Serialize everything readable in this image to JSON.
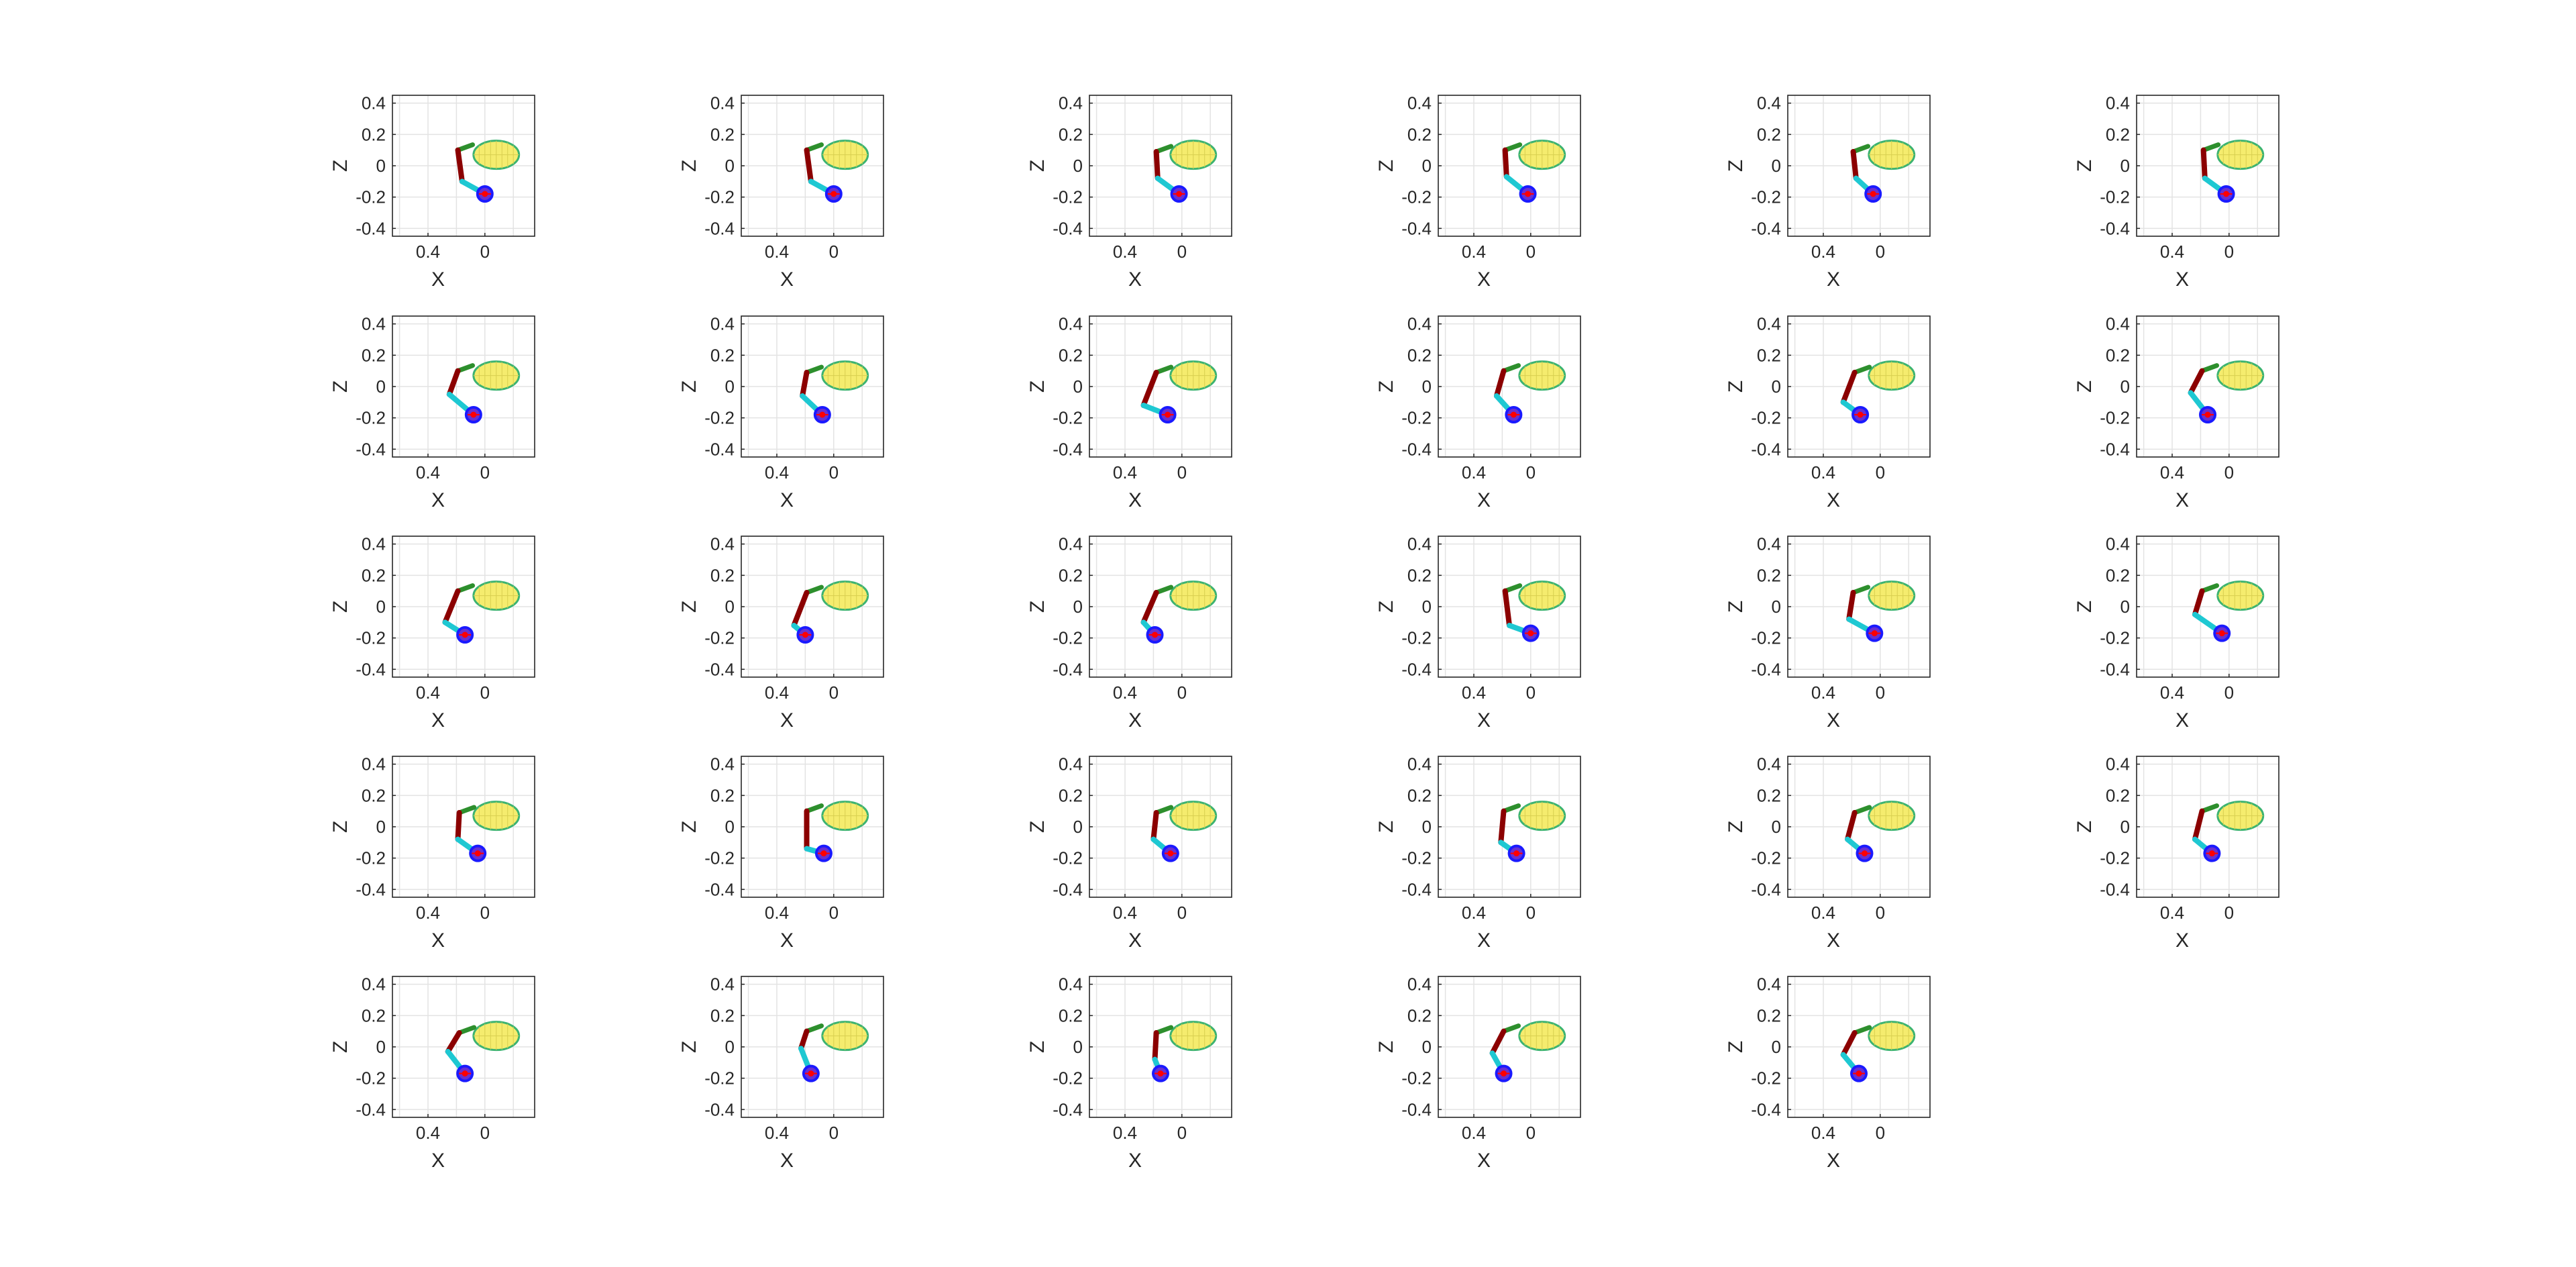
{
  "chart_data": {
    "type": "small-multiples",
    "plot_kind": "arm-pose-snapshot",
    "panel_count": 29,
    "grid": {
      "rows": 5,
      "cols": 6
    },
    "xlabel": "X",
    "ylabel": "Z",
    "xlim": [
      0.65,
      -0.35
    ],
    "ylim": [
      -0.45,
      0.45
    ],
    "x_reversed": true,
    "x_ticks": [
      0.4,
      0
    ],
    "x_tick_labels": [
      "0.4",
      "0"
    ],
    "y_ticks": [
      0.4,
      0.2,
      0,
      -0.2,
      -0.4
    ],
    "y_tick_labels": [
      "0.4",
      "0.2",
      "0",
      "-0.2",
      "-0.4"
    ],
    "grid_lines": true,
    "colors": {
      "upper_link": "#8b0000",
      "lower_link": "#1ec8d2",
      "base_link": "#2d8f2d",
      "ellipsoid_fill": "#f5ec6e",
      "ellipsoid_edge": "#3cb371",
      "target_ring": "#1a1aff",
      "target_center": "#ff0000",
      "axes_box": "#262626",
      "grid": "#e3e3e3"
    },
    "ellipsoid": {
      "center": [
        -0.08,
        0.07
      ],
      "radii": [
        0.16,
        0.09
      ]
    },
    "panels": [
      {
        "index": 1,
        "base": [
          0.19,
          0.1
        ],
        "shoulder": [
          0.16,
          -0.1
        ],
        "target": [
          0.0,
          -0.18
        ]
      },
      {
        "index": 2,
        "base": [
          0.19,
          0.1
        ],
        "shoulder": [
          0.16,
          -0.1
        ],
        "target": [
          0.0,
          -0.18
        ]
      },
      {
        "index": 3,
        "base": [
          0.18,
          0.09
        ],
        "shoulder": [
          0.17,
          -0.08
        ],
        "target": [
          0.02,
          -0.18
        ]
      },
      {
        "index": 4,
        "base": [
          0.18,
          0.1
        ],
        "shoulder": [
          0.17,
          -0.07
        ],
        "target": [
          0.02,
          -0.18
        ]
      },
      {
        "index": 5,
        "base": [
          0.19,
          0.09
        ],
        "shoulder": [
          0.17,
          -0.08
        ],
        "target": [
          0.05,
          -0.18
        ]
      },
      {
        "index": 6,
        "base": [
          0.18,
          0.1
        ],
        "shoulder": [
          0.17,
          -0.08
        ],
        "target": [
          0.02,
          -0.18
        ]
      },
      {
        "index": 7,
        "base": [
          0.19,
          0.1
        ],
        "shoulder": [
          0.25,
          -0.05
        ],
        "target": [
          0.08,
          -0.18
        ]
      },
      {
        "index": 8,
        "base": [
          0.19,
          0.09
        ],
        "shoulder": [
          0.22,
          -0.06
        ],
        "target": [
          0.08,
          -0.18
        ]
      },
      {
        "index": 9,
        "base": [
          0.18,
          0.09
        ],
        "shoulder": [
          0.27,
          -0.12
        ],
        "target": [
          0.1,
          -0.18
        ]
      },
      {
        "index": 10,
        "base": [
          0.19,
          0.1
        ],
        "shoulder": [
          0.24,
          -0.06
        ],
        "target": [
          0.12,
          -0.18
        ]
      },
      {
        "index": 11,
        "base": [
          0.18,
          0.09
        ],
        "shoulder": [
          0.26,
          -0.1
        ],
        "target": [
          0.14,
          -0.18
        ]
      },
      {
        "index": 12,
        "base": [
          0.19,
          0.1
        ],
        "shoulder": [
          0.27,
          -0.04
        ],
        "target": [
          0.15,
          -0.18
        ]
      },
      {
        "index": 13,
        "base": [
          0.19,
          0.1
        ],
        "shoulder": [
          0.28,
          -0.1
        ],
        "target": [
          0.14,
          -0.18
        ]
      },
      {
        "index": 14,
        "base": [
          0.19,
          0.09
        ],
        "shoulder": [
          0.28,
          -0.12
        ],
        "target": [
          0.2,
          -0.18
        ]
      },
      {
        "index": 15,
        "base": [
          0.18,
          0.09
        ],
        "shoulder": [
          0.27,
          -0.1
        ],
        "target": [
          0.19,
          -0.18
        ]
      },
      {
        "index": 16,
        "base": [
          0.18,
          0.1
        ],
        "shoulder": [
          0.15,
          -0.12
        ],
        "target": [
          0.0,
          -0.17
        ]
      },
      {
        "index": 17,
        "base": [
          0.19,
          0.09
        ],
        "shoulder": [
          0.22,
          -0.08
        ],
        "target": [
          0.04,
          -0.17
        ]
      },
      {
        "index": 18,
        "base": [
          0.19,
          0.1
        ],
        "shoulder": [
          0.24,
          -0.05
        ],
        "target": [
          0.05,
          -0.17
        ]
      },
      {
        "index": 19,
        "base": [
          0.18,
          0.09
        ],
        "shoulder": [
          0.19,
          -0.08
        ],
        "target": [
          0.05,
          -0.17
        ]
      },
      {
        "index": 20,
        "base": [
          0.19,
          0.1
        ],
        "shoulder": [
          0.19,
          -0.14
        ],
        "target": [
          0.07,
          -0.17
        ]
      },
      {
        "index": 21,
        "base": [
          0.18,
          0.09
        ],
        "shoulder": [
          0.2,
          -0.08
        ],
        "target": [
          0.08,
          -0.17
        ]
      },
      {
        "index": 22,
        "base": [
          0.19,
          0.1
        ],
        "shoulder": [
          0.21,
          -0.1
        ],
        "target": [
          0.1,
          -0.17
        ]
      },
      {
        "index": 23,
        "base": [
          0.18,
          0.09
        ],
        "shoulder": [
          0.23,
          -0.08
        ],
        "target": [
          0.11,
          -0.17
        ]
      },
      {
        "index": 24,
        "base": [
          0.19,
          0.1
        ],
        "shoulder": [
          0.24,
          -0.08
        ],
        "target": [
          0.12,
          -0.17
        ]
      },
      {
        "index": 25,
        "base": [
          0.18,
          0.09
        ],
        "shoulder": [
          0.26,
          -0.03
        ],
        "target": [
          0.14,
          -0.17
        ]
      },
      {
        "index": 26,
        "base": [
          0.19,
          0.1
        ],
        "shoulder": [
          0.23,
          -0.01
        ],
        "target": [
          0.16,
          -0.17
        ]
      },
      {
        "index": 27,
        "base": [
          0.18,
          0.09
        ],
        "shoulder": [
          0.19,
          -0.08
        ],
        "target": [
          0.15,
          -0.17
        ]
      },
      {
        "index": 28,
        "base": [
          0.19,
          0.1
        ],
        "shoulder": [
          0.27,
          -0.04
        ],
        "target": [
          0.19,
          -0.17
        ]
      },
      {
        "index": 29,
        "base": [
          0.18,
          0.09
        ],
        "shoulder": [
          0.26,
          -0.05
        ],
        "target": [
          0.15,
          -0.17
        ]
      }
    ]
  }
}
